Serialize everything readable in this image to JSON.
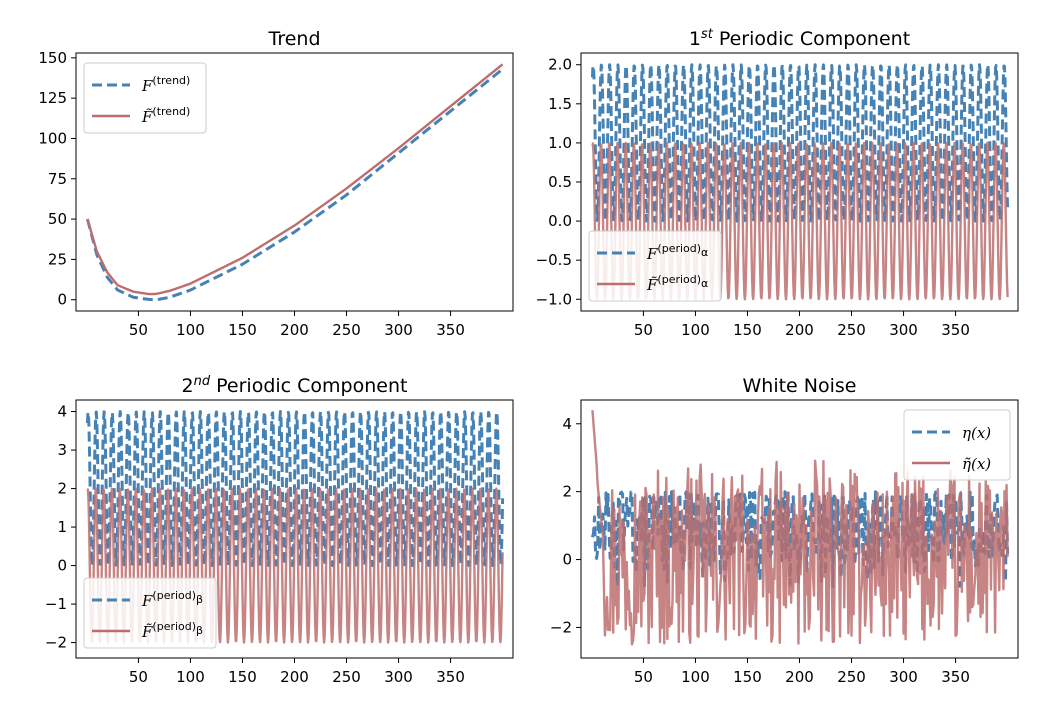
{
  "colors": {
    "true": "#4682b4",
    "estimate": "#bc6e6e"
  },
  "chart_data": [
    {
      "type": "line",
      "title": "Trend",
      "title_super": "",
      "title_rest": "",
      "xlabel": "",
      "ylabel": "",
      "xlim": [
        -10,
        410
      ],
      "ylim": [
        -7,
        153
      ],
      "xticks": [
        50,
        100,
        150,
        200,
        250,
        300,
        350
      ],
      "yticks": [
        0,
        25,
        50,
        75,
        100,
        125,
        150
      ],
      "ytick_labels": [
        "0",
        "25",
        "50",
        "75",
        "100",
        "125",
        "150"
      ],
      "legend": {
        "position": "upper-left",
        "entries": [
          {
            "base": "F",
            "tilde": false,
            "sup": "(trend)"
          },
          {
            "base": "F",
            "tilde": true,
            "sup": "(trend)"
          }
        ]
      },
      "generator": "trend",
      "series": [
        {
          "name": "F(trend)",
          "style": "dashed",
          "x": [
            1,
            10,
            20,
            30,
            45,
            60,
            65,
            70,
            80,
            100,
            150,
            200,
            250,
            300,
            350,
            400
          ],
          "y": [
            50,
            28,
            14,
            6,
            1.5,
            0.2,
            0,
            0.3,
            1.5,
            6,
            22,
            42,
            65,
            91,
            117,
            143
          ]
        },
        {
          "name": "F~(trend)",
          "style": "solid",
          "x": [
            1,
            10,
            20,
            30,
            45,
            60,
            65,
            70,
            80,
            100,
            150,
            200,
            250,
            300,
            350,
            400
          ],
          "y": [
            50,
            30,
            17,
            9,
            5,
            3.5,
            3.5,
            4,
            5.5,
            10,
            26,
            46,
            69,
            94,
            120,
            146
          ]
        }
      ]
    },
    {
      "type": "line",
      "title": "",
      "title_super": "st",
      "title_pre": "1",
      "title_rest": " Periodic Component",
      "xlabel": "",
      "ylabel": "",
      "xlim": [
        -10,
        410
      ],
      "ylim": [
        -1.15,
        2.15
      ],
      "xticks": [
        50,
        100,
        150,
        200,
        250,
        300,
        350
      ],
      "yticks": [
        -1.0,
        -0.5,
        0.0,
        0.5,
        1.0,
        1.5,
        2.0
      ],
      "ytick_labels": [
        "−1.0",
        "−0.5",
        "0.0",
        "0.5",
        "1.0",
        "1.5",
        "2.0"
      ],
      "legend": {
        "position": "lower-left",
        "entries": [
          {
            "base": "F",
            "tilde": false,
            "sup": "(period)",
            "subsup": "α"
          },
          {
            "base": "F",
            "tilde": true,
            "sup": "(period)",
            "subsup": "α"
          }
        ]
      },
      "generator": "period1",
      "series": [
        {
          "name": "F(period)α",
          "style": "dashed",
          "x_range": [
            1,
            400
          ],
          "period": 7.9,
          "min": 0.0,
          "max": 2.0
        },
        {
          "name": "F~(period)α",
          "style": "solid",
          "x_range": [
            1,
            400
          ],
          "period": 7.9,
          "min": -1.0,
          "max": 1.0
        }
      ]
    },
    {
      "type": "line",
      "title": "",
      "title_pre": "2",
      "title_super": "nd",
      "title_rest": " Periodic Component",
      "xlabel": "",
      "ylabel": "",
      "xlim": [
        -10,
        410
      ],
      "ylim": [
        -2.4,
        4.3
      ],
      "xticks": [
        50,
        100,
        150,
        200,
        250,
        300,
        350
      ],
      "yticks": [
        -2,
        -1,
        0,
        1,
        2,
        3,
        4
      ],
      "ytick_labels": [
        "−2",
        "−1",
        "0",
        "1",
        "2",
        "3",
        "4"
      ],
      "legend": {
        "position": "lower-left",
        "entries": [
          {
            "base": "F",
            "tilde": false,
            "sup": "(period)",
            "subsup": "β"
          },
          {
            "base": "F",
            "tilde": true,
            "sup": "(period)",
            "subsup": "β"
          }
        ]
      },
      "generator": "period2",
      "series": [
        {
          "name": "F(period)β",
          "style": "dashed",
          "x_range": [
            1,
            400
          ],
          "period": 7.7,
          "min": 0.0,
          "max": 4.0
        },
        {
          "name": "F~(period)β",
          "style": "solid",
          "x_range": [
            1,
            400
          ],
          "period": 7.7,
          "min": -2.0,
          "max": 2.0
        }
      ]
    },
    {
      "type": "line",
      "title": "White Noise",
      "title_super": "",
      "title_rest": "",
      "xlabel": "",
      "ylabel": "",
      "xlim": [
        -10,
        410
      ],
      "ylim": [
        -2.9,
        4.7
      ],
      "xticks": [
        50,
        100,
        150,
        200,
        250,
        300,
        350
      ],
      "yticks": [
        -2,
        0,
        2,
        4
      ],
      "ytick_labels": [
        "−2",
        "0",
        "2",
        "4"
      ],
      "legend": {
        "position": "upper-right",
        "entries": [
          {
            "base": "η(x)",
            "tilde": false,
            "sup": ""
          },
          {
            "base": "η(x)",
            "tilde": true,
            "sup": ""
          }
        ]
      },
      "generator": "noise",
      "series": [
        {
          "name": "η(x)",
          "style": "dashed",
          "x_range": [
            1,
            400
          ],
          "min": -1.8,
          "max": 2.0,
          "mean": 1.0
        },
        {
          "name": "η~(x)",
          "style": "solid",
          "x_range": [
            1,
            400
          ],
          "min": -2.5,
          "max": 4.4,
          "mean": 0.0
        }
      ]
    }
  ]
}
